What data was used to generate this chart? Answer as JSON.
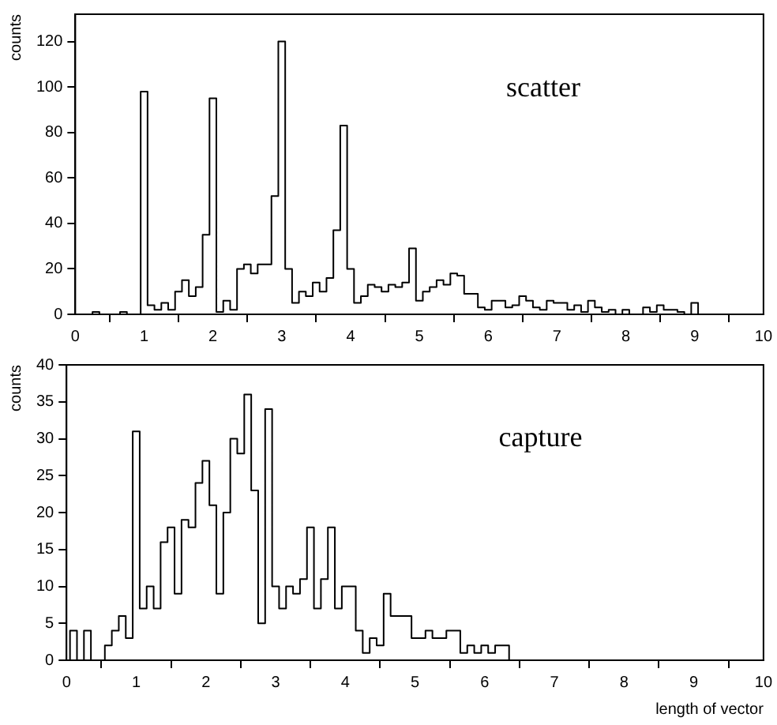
{
  "chart_data": [
    {
      "type": "histogram",
      "ylabel": "counts",
      "annotations": [
        "scatter"
      ],
      "color": "#000000",
      "bins": [
        0.05,
        0.15,
        0.25,
        0.35,
        0.45,
        0.55,
        0.65,
        0.75,
        0.85,
        0.95,
        1.05,
        1.15,
        1.25,
        1.35,
        1.45,
        1.55,
        1.65,
        1.75,
        1.85,
        1.95,
        2.05,
        2.15,
        2.25,
        2.35,
        2.45,
        2.55,
        2.65,
        2.75,
        2.85,
        2.95,
        3.05,
        3.15,
        3.25,
        3.35,
        3.45,
        3.55,
        3.65,
        3.75,
        3.85,
        3.95,
        4.05,
        4.15,
        4.25,
        4.35,
        4.45,
        4.55,
        4.65,
        4.75,
        4.85,
        4.95,
        5.05,
        5.15,
        5.25,
        5.35,
        5.45,
        5.55,
        5.65,
        5.75,
        5.85,
        5.95,
        6.05,
        6.15,
        6.25,
        6.35,
        6.45,
        6.55,
        6.65,
        6.75,
        6.85,
        6.95,
        7.05,
        7.15,
        7.25,
        7.35,
        7.45,
        7.55,
        7.65,
        7.75,
        7.85,
        7.95,
        8.05,
        8.15,
        8.25,
        8.35,
        8.45,
        8.55,
        8.65,
        8.75,
        8.85,
        8.95,
        9.05,
        9.15,
        9.25,
        9.35,
        9.45,
        9.55,
        9.65,
        9.75,
        9.85,
        9.95
      ],
      "values": [
        0,
        0,
        1,
        0,
        0,
        0,
        1,
        0,
        0,
        98,
        4,
        2,
        5,
        2,
        10,
        15,
        8,
        12,
        35,
        95,
        1,
        6,
        2,
        20,
        22,
        18,
        22,
        22,
        52,
        120,
        20,
        5,
        10,
        8,
        14,
        10,
        16,
        37,
        83,
        20,
        5,
        8,
        13,
        12,
        10,
        13,
        12,
        14,
        29,
        6,
        10,
        12,
        15,
        13,
        18,
        17,
        9,
        9,
        3,
        2,
        6,
        6,
        3,
        4,
        8,
        6,
        3,
        2,
        6,
        5,
        5,
        2,
        4,
        1,
        6,
        3,
        1,
        2,
        0,
        2,
        0,
        0,
        3,
        1,
        4,
        2,
        2,
        1,
        0,
        5,
        0,
        0,
        0,
        0,
        0,
        0,
        0,
        0,
        0
      ],
      "xlim": [
        0,
        10
      ],
      "xticks": [
        0,
        1,
        2,
        3,
        4,
        5,
        6,
        7,
        8,
        9,
        10
      ],
      "ylim": [
        0,
        132
      ],
      "yticks": [
        0,
        20,
        40,
        60,
        80,
        100,
        120
      ],
      "grid": false,
      "legend": false
    },
    {
      "type": "histogram",
      "ylabel": "counts",
      "xlabel": "length of vector",
      "annotations": [
        "capture"
      ],
      "color": "#000000",
      "bins": [
        0.05,
        0.15,
        0.25,
        0.35,
        0.45,
        0.55,
        0.65,
        0.75,
        0.85,
        0.95,
        1.05,
        1.15,
        1.25,
        1.35,
        1.45,
        1.55,
        1.65,
        1.75,
        1.85,
        1.95,
        2.05,
        2.15,
        2.25,
        2.35,
        2.45,
        2.55,
        2.65,
        2.75,
        2.85,
        2.95,
        3.05,
        3.15,
        3.25,
        3.35,
        3.45,
        3.55,
        3.65,
        3.75,
        3.85,
        3.95,
        4.05,
        4.15,
        4.25,
        4.35,
        4.45,
        4.55,
        4.65,
        4.75,
        4.85,
        4.95,
        5.05,
        5.15,
        5.25,
        5.35,
        5.45,
        5.55,
        5.65,
        5.75,
        5.85,
        5.95,
        6.05,
        6.15,
        6.25,
        6.35,
        6.45,
        6.55,
        6.65,
        6.75,
        6.85,
        6.95,
        7.05,
        7.15,
        7.25,
        7.35,
        7.45,
        7.55,
        7.65,
        7.75,
        7.85,
        7.95,
        8.05,
        8.15,
        8.25,
        8.35,
        8.45,
        8.55,
        8.65,
        8.75,
        8.85,
        8.95,
        9.05,
        9.15,
        9.25,
        9.35,
        9.45,
        9.55,
        9.65,
        9.75,
        9.85,
        9.95
      ],
      "values": [
        4,
        0,
        4,
        0,
        0,
        2,
        4,
        6,
        3,
        31,
        7,
        10,
        7,
        16,
        18,
        9,
        19,
        18,
        24,
        27,
        21,
        9,
        20,
        30,
        28,
        36,
        23,
        5,
        34,
        10,
        7,
        10,
        9,
        11,
        18,
        7,
        11,
        18,
        7,
        10,
        10,
        4,
        1,
        3,
        2,
        9,
        6,
        6,
        6,
        3,
        3,
        4,
        3,
        3,
        4,
        4,
        1,
        2,
        1,
        2,
        1,
        2,
        2,
        0,
        0,
        0,
        0,
        0,
        0,
        0,
        0,
        0,
        0,
        0,
        0,
        0,
        0,
        0,
        0,
        0,
        0,
        0,
        0,
        0,
        0,
        0,
        0,
        0,
        0,
        0,
        0,
        0,
        0,
        0,
        0,
        0,
        0,
        0,
        0
      ],
      "xlim": [
        0,
        10
      ],
      "xticks": [
        0,
        1,
        2,
        3,
        4,
        5,
        6,
        7,
        8,
        9,
        10
      ],
      "ylim": [
        0,
        40
      ],
      "yticks": [
        0,
        5,
        10,
        15,
        20,
        25,
        30,
        35,
        40
      ],
      "grid": false,
      "legend": false
    }
  ]
}
